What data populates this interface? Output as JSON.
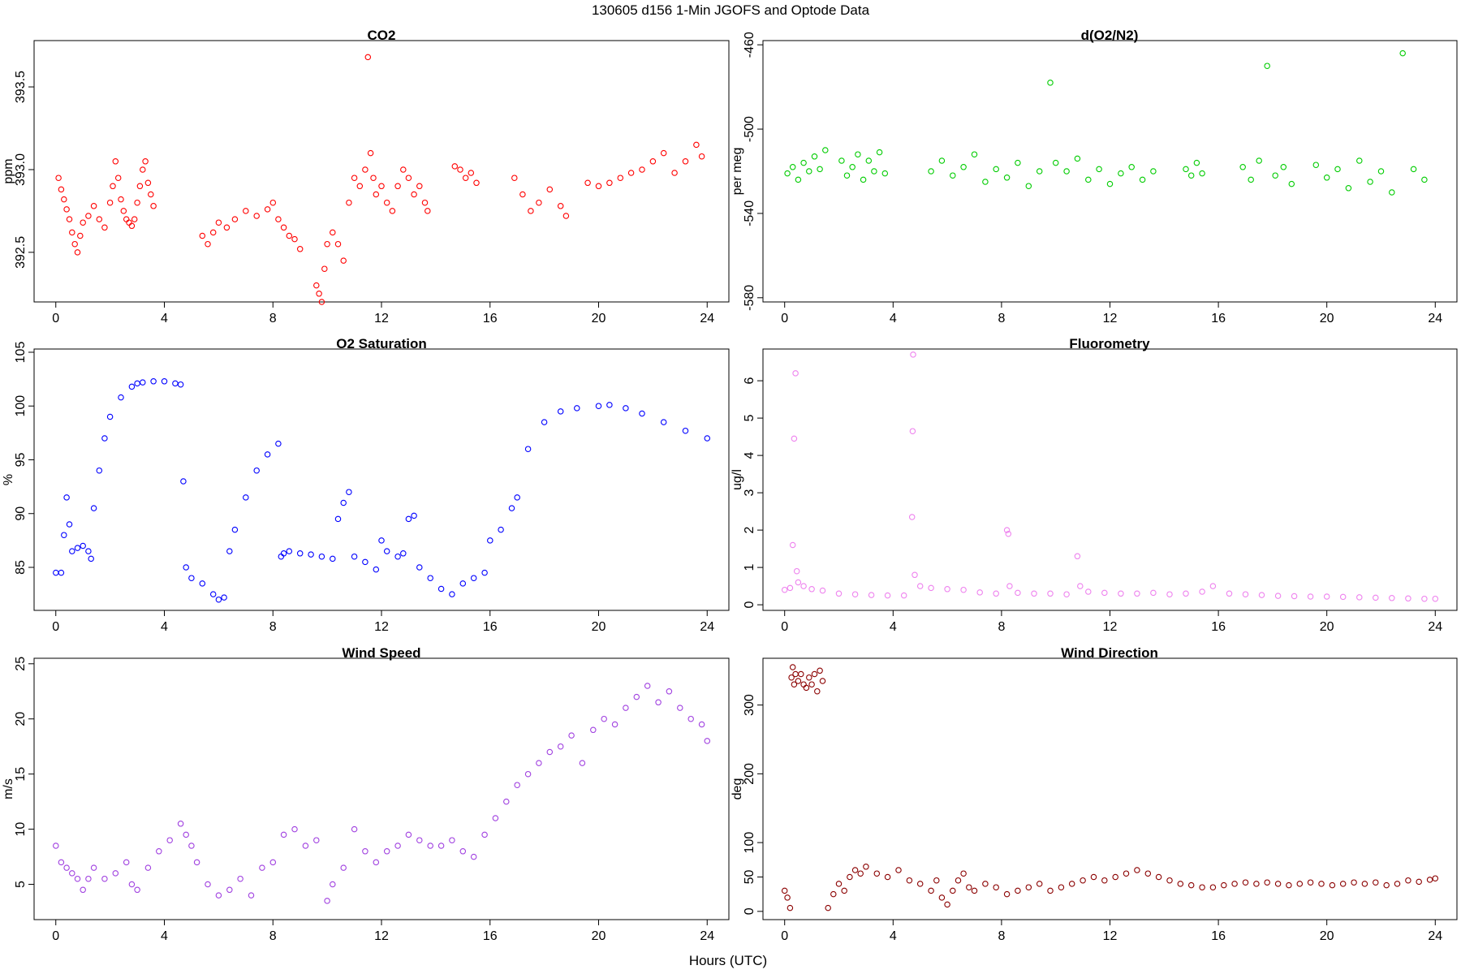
{
  "figure": {
    "title": "130605   d156   1-Min  JGOFS and Optode Data",
    "xlabel": "Hours (UTC)"
  },
  "chart_data": [
    {
      "id": "co2",
      "type": "scatter",
      "title": "CO2",
      "ylabel": "ppm",
      "color": "#ff0000",
      "xlim": [
        -0.8,
        24.8
      ],
      "ylim": [
        392.2,
        393.78
      ],
      "xticks": [
        0,
        4,
        8,
        12,
        16,
        20,
        24
      ],
      "yticks": [
        392.5,
        393.0,
        393.5
      ],
      "ytick_labels": [
        "392.5",
        "393.0",
        "393.5"
      ],
      "series": [
        {
          "name": "CO2",
          "x": [
            0.1,
            0.2,
            0.3,
            0.4,
            0.5,
            0.6,
            0.7,
            0.8,
            0.9,
            1.0,
            1.2,
            1.4,
            1.6,
            1.8,
            2.0,
            2.1,
            2.2,
            2.3,
            2.4,
            2.5,
            2.6,
            2.7,
            2.8,
            2.9,
            3.0,
            3.1,
            3.2,
            3.3,
            3.4,
            3.5,
            3.6,
            5.4,
            5.6,
            5.8,
            6.0,
            6.3,
            6.6,
            7.0,
            7.4,
            7.8,
            8.0,
            8.2,
            8.4,
            8.6,
            8.8,
            9.0,
            9.6,
            9.7,
            9.8,
            9.9,
            10.0,
            10.2,
            10.4,
            10.6,
            10.8,
            11.0,
            11.2,
            11.4,
            11.5,
            11.6,
            11.7,
            11.8,
            12.0,
            12.2,
            12.4,
            12.6,
            12.8,
            13.0,
            13.2,
            13.4,
            13.6,
            13.7,
            14.7,
            14.9,
            15.1,
            15.3,
            15.5,
            16.9,
            17.2,
            17.5,
            17.8,
            18.2,
            18.6,
            18.8,
            19.6,
            20.0,
            20.4,
            20.8,
            21.2,
            21.6,
            22.0,
            22.4,
            22.8,
            23.2,
            23.6,
            23.8
          ],
          "y": [
            392.95,
            392.88,
            392.82,
            392.76,
            392.7,
            392.62,
            392.55,
            392.5,
            392.6,
            392.68,
            392.72,
            392.78,
            392.7,
            392.65,
            392.8,
            392.9,
            393.05,
            392.95,
            392.82,
            392.75,
            392.7,
            392.68,
            392.66,
            392.7,
            392.8,
            392.9,
            393.0,
            393.05,
            392.92,
            392.85,
            392.78,
            392.6,
            392.55,
            392.62,
            392.68,
            392.65,
            392.7,
            392.75,
            392.72,
            392.76,
            392.8,
            392.7,
            392.65,
            392.6,
            392.58,
            392.52,
            392.3,
            392.25,
            392.2,
            392.4,
            392.55,
            392.62,
            392.55,
            392.45,
            392.8,
            392.95,
            392.9,
            393.0,
            393.68,
            393.1,
            392.95,
            392.85,
            392.9,
            392.8,
            392.75,
            392.9,
            393.0,
            392.95,
            392.85,
            392.9,
            392.8,
            392.75,
            393.02,
            393.0,
            392.95,
            392.98,
            392.92,
            392.95,
            392.85,
            392.75,
            392.8,
            392.88,
            392.78,
            392.72,
            392.92,
            392.9,
            392.92,
            392.95,
            392.98,
            393.0,
            393.05,
            393.1,
            392.98,
            393.05,
            393.15,
            393.08
          ]
        }
      ]
    },
    {
      "id": "do2n2",
      "type": "scatter",
      "title": "d(O2/N2)",
      "ylabel": "per meg",
      "color": "#00cc00",
      "xlim": [
        -0.8,
        24.8
      ],
      "ylim": [
        -582,
        -458
      ],
      "xticks": [
        0,
        4,
        8,
        12,
        16,
        20,
        24
      ],
      "yticks": [
        -580,
        -540,
        -500,
        -460
      ],
      "ytick_labels": [
        "-580",
        "-540",
        "-500",
        "-460"
      ],
      "series": [
        {
          "name": "d(O2/N2)",
          "x": [
            0.1,
            0.3,
            0.5,
            0.7,
            0.9,
            1.1,
            1.3,
            1.5,
            2.1,
            2.3,
            2.5,
            2.7,
            2.9,
            3.1,
            3.3,
            3.5,
            3.7,
            5.4,
            5.8,
            6.2,
            6.6,
            7.0,
            7.4,
            7.8,
            8.2,
            8.6,
            9.0,
            9.4,
            9.8,
            10.0,
            10.4,
            10.8,
            11.2,
            11.6,
            12.0,
            12.4,
            12.8,
            13.2,
            13.6,
            14.8,
            15.0,
            15.2,
            15.4,
            16.9,
            17.2,
            17.5,
            17.8,
            18.1,
            18.4,
            18.7,
            19.6,
            20.0,
            20.4,
            20.8,
            21.2,
            21.6,
            22.0,
            22.4,
            22.8,
            23.2,
            23.6
          ],
          "y": [
            -521,
            -518,
            -524,
            -516,
            -520,
            -513,
            -519,
            -510,
            -515,
            -522,
            -518,
            -512,
            -524,
            -515,
            -520,
            -511,
            -521,
            -520,
            -515,
            -522,
            -518,
            -512,
            -525,
            -519,
            -523,
            -516,
            -527,
            -520,
            -478,
            -516,
            -520,
            -514,
            -524,
            -519,
            -526,
            -521,
            -518,
            -524,
            -520,
            -519,
            -522,
            -516,
            -521,
            -518,
            -524,
            -515,
            -470,
            -522,
            -518,
            -526,
            -517,
            -523,
            -519,
            -528,
            -515,
            -525,
            -520,
            -530,
            -464,
            -519,
            -524
          ]
        }
      ]
    },
    {
      "id": "o2sat",
      "type": "scatter",
      "title": "O2 Saturation",
      "ylabel": "%",
      "color": "#0000ff",
      "xlim": [
        -0.8,
        24.8
      ],
      "ylim": [
        81,
        105.3
      ],
      "xticks": [
        0,
        4,
        8,
        12,
        16,
        20,
        24
      ],
      "yticks": [
        85,
        90,
        95,
        100,
        105
      ],
      "ytick_labels": [
        "85",
        "90",
        "95",
        "100",
        "105"
      ],
      "series": [
        {
          "name": "O2 Saturation",
          "x": [
            0.0,
            0.2,
            0.3,
            0.4,
            0.5,
            0.6,
            0.8,
            1.0,
            1.2,
            1.3,
            1.4,
            1.6,
            1.8,
            2.0,
            2.4,
            2.8,
            3.0,
            3.2,
            3.6,
            4.0,
            4.4,
            4.6,
            4.7,
            4.8,
            5.0,
            5.4,
            5.8,
            6.0,
            6.2,
            6.4,
            6.6,
            7.0,
            7.4,
            7.8,
            8.2,
            8.3,
            8.4,
            8.6,
            9.0,
            9.4,
            9.8,
            10.2,
            10.4,
            10.6,
            10.8,
            11.0,
            11.4,
            11.8,
            12.0,
            12.2,
            12.6,
            12.8,
            13.0,
            13.2,
            13.4,
            13.8,
            14.2,
            14.6,
            15.0,
            15.4,
            15.8,
            16.0,
            16.4,
            16.8,
            17.0,
            17.4,
            18.0,
            18.6,
            19.2,
            20.0,
            20.4,
            21.0,
            21.6,
            22.4,
            23.2,
            24.0
          ],
          "y": [
            84.5,
            84.5,
            88.0,
            91.5,
            89.0,
            86.5,
            86.8,
            87.0,
            86.5,
            85.8,
            90.5,
            94.0,
            97.0,
            99.0,
            100.8,
            101.8,
            102.1,
            102.2,
            102.3,
            102.3,
            102.1,
            102.0,
            93.0,
            85.0,
            84.0,
            83.5,
            82.5,
            82.0,
            82.2,
            86.5,
            88.5,
            91.5,
            94.0,
            95.5,
            96.5,
            86.0,
            86.3,
            86.5,
            86.3,
            86.2,
            86.0,
            85.8,
            89.5,
            91.0,
            92.0,
            86.0,
            85.5,
            84.8,
            87.5,
            86.5,
            86.0,
            86.3,
            89.5,
            89.8,
            85.0,
            84.0,
            83.0,
            82.5,
            83.5,
            84.0,
            84.5,
            87.5,
            88.5,
            90.5,
            91.5,
            96.0,
            98.5,
            99.5,
            99.8,
            100.0,
            100.1,
            99.8,
            99.3,
            98.5,
            97.7,
            97.0
          ]
        }
      ]
    },
    {
      "id": "fluor",
      "type": "scatter",
      "title": "Fluorometry",
      "ylabel": "ug/l",
      "color": "#ee82ee",
      "xlim": [
        -0.8,
        24.8
      ],
      "ylim": [
        -0.15,
        6.85
      ],
      "xticks": [
        0,
        4,
        8,
        12,
        16,
        20,
        24
      ],
      "yticks": [
        0,
        1,
        2,
        3,
        4,
        5,
        6
      ],
      "ytick_labels": [
        "0",
        "1",
        "2",
        "3",
        "4",
        "5",
        "6"
      ],
      "series": [
        {
          "name": "Fluorometry",
          "x": [
            0.0,
            0.2,
            0.3,
            0.35,
            0.4,
            0.45,
            0.5,
            0.7,
            1.0,
            1.4,
            2.0,
            2.6,
            3.2,
            3.8,
            4.4,
            4.7,
            4.72,
            4.74,
            4.8,
            5.0,
            5.4,
            6.0,
            6.6,
            7.2,
            7.8,
            8.2,
            8.25,
            8.3,
            8.6,
            9.2,
            9.8,
            10.4,
            10.8,
            10.9,
            11.2,
            11.8,
            12.4,
            13.0,
            13.6,
            14.2,
            14.8,
            15.4,
            15.8,
            16.4,
            17.0,
            17.6,
            18.2,
            18.8,
            19.4,
            20.0,
            20.6,
            21.2,
            21.8,
            22.4,
            23.0,
            23.6,
            24.0
          ],
          "y": [
            0.4,
            0.45,
            1.6,
            4.45,
            6.2,
            0.9,
            0.6,
            0.5,
            0.42,
            0.38,
            0.3,
            0.28,
            0.26,
            0.25,
            0.25,
            2.35,
            4.65,
            6.7,
            0.8,
            0.5,
            0.45,
            0.42,
            0.4,
            0.33,
            0.3,
            2.0,
            1.9,
            0.5,
            0.32,
            0.3,
            0.3,
            0.28,
            1.3,
            0.5,
            0.35,
            0.32,
            0.3,
            0.3,
            0.32,
            0.28,
            0.3,
            0.35,
            0.5,
            0.3,
            0.28,
            0.26,
            0.24,
            0.23,
            0.22,
            0.22,
            0.21,
            0.2,
            0.19,
            0.18,
            0.17,
            0.16,
            0.16
          ]
        }
      ]
    },
    {
      "id": "wspd",
      "type": "scatter",
      "title": "Wind Speed",
      "ylabel": "m/s",
      "color": "#a040e0",
      "xlim": [
        -0.8,
        24.8
      ],
      "ylim": [
        1.8,
        25.5
      ],
      "xticks": [
        0,
        4,
        8,
        12,
        16,
        20,
        24
      ],
      "yticks": [
        5,
        10,
        15,
        20,
        25
      ],
      "ytick_labels": [
        "5",
        "10",
        "15",
        "20",
        "25"
      ],
      "series": [
        {
          "name": "Wind Speed",
          "x": [
            0.0,
            0.2,
            0.4,
            0.6,
            0.8,
            1.0,
            1.2,
            1.4,
            1.8,
            2.2,
            2.6,
            2.8,
            3.0,
            3.4,
            3.8,
            4.2,
            4.6,
            4.8,
            5.0,
            5.2,
            5.6,
            6.0,
            6.4,
            6.8,
            7.2,
            7.6,
            8.0,
            8.4,
            8.8,
            9.2,
            9.6,
            10.0,
            10.2,
            10.6,
            11.0,
            11.4,
            11.8,
            12.2,
            12.6,
            13.0,
            13.4,
            13.8,
            14.2,
            14.6,
            15.0,
            15.4,
            15.8,
            16.2,
            16.6,
            17.0,
            17.4,
            17.8,
            18.2,
            18.6,
            19.0,
            19.4,
            19.8,
            20.2,
            20.6,
            21.0,
            21.4,
            21.8,
            22.2,
            22.6,
            23.0,
            23.4,
            23.8,
            24.0
          ],
          "y": [
            8.5,
            7.0,
            6.5,
            6.0,
            5.5,
            4.5,
            5.5,
            6.5,
            5.5,
            6.0,
            7.0,
            5.0,
            4.5,
            6.5,
            8.0,
            9.0,
            10.5,
            9.5,
            8.5,
            7.0,
            5.0,
            4.0,
            4.5,
            5.5,
            4.0,
            6.5,
            7.0,
            9.5,
            10.0,
            8.5,
            9.0,
            3.5,
            5.0,
            6.5,
            10.0,
            8.0,
            7.0,
            8.0,
            8.5,
            9.5,
            9.0,
            8.5,
            8.5,
            9.0,
            8.0,
            7.5,
            9.5,
            11.0,
            12.5,
            14.0,
            15.0,
            16.0,
            17.0,
            17.5,
            18.5,
            16.0,
            19.0,
            20.0,
            19.5,
            21.0,
            22.0,
            23.0,
            21.5,
            22.5,
            21.0,
            20.0,
            19.5,
            18.0
          ]
        }
      ]
    },
    {
      "id": "wdir",
      "type": "scatter",
      "title": "Wind Direction",
      "ylabel": "deg",
      "color": "#8b0000",
      "xlim": [
        -0.8,
        24.8
      ],
      "ylim": [
        -12,
        368
      ],
      "xticks": [
        0,
        4,
        8,
        12,
        16,
        20,
        24
      ],
      "yticks": [
        0,
        50,
        100,
        200,
        300
      ],
      "ytick_labels": [
        "0",
        "50",
        "100",
        "200",
        "300"
      ],
      "series": [
        {
          "name": "Wind Direction",
          "x": [
            0.0,
            0.1,
            0.2,
            0.25,
            0.3,
            0.35,
            0.4,
            0.5,
            0.6,
            0.7,
            0.8,
            0.9,
            1.0,
            1.1,
            1.2,
            1.3,
            1.4,
            1.6,
            1.8,
            2.0,
            2.2,
            2.4,
            2.6,
            2.8,
            3.0,
            3.4,
            3.8,
            4.2,
            4.6,
            5.0,
            5.4,
            5.6,
            5.8,
            6.0,
            6.2,
            6.4,
            6.6,
            6.8,
            7.0,
            7.4,
            7.8,
            8.2,
            8.6,
            9.0,
            9.4,
            9.8,
            10.2,
            10.6,
            11.0,
            11.4,
            11.8,
            12.2,
            12.6,
            13.0,
            13.4,
            13.8,
            14.2,
            14.6,
            15.0,
            15.4,
            15.8,
            16.2,
            16.6,
            17.0,
            17.4,
            17.8,
            18.2,
            18.6,
            19.0,
            19.4,
            19.8,
            20.2,
            20.6,
            21.0,
            21.4,
            21.8,
            22.2,
            22.6,
            23.0,
            23.4,
            23.8,
            24.0
          ],
          "y": [
            30,
            20,
            5,
            340,
            355,
            330,
            345,
            335,
            345,
            330,
            325,
            340,
            330,
            345,
            320,
            350,
            335,
            5,
            25,
            40,
            30,
            50,
            60,
            55,
            65,
            55,
            50,
            60,
            45,
            40,
            30,
            45,
            20,
            10,
            30,
            45,
            55,
            35,
            30,
            40,
            35,
            25,
            30,
            35,
            40,
            30,
            35,
            40,
            45,
            50,
            45,
            50,
            55,
            60,
            55,
            50,
            45,
            40,
            38,
            35,
            35,
            38,
            40,
            42,
            40,
            42,
            40,
            38,
            40,
            42,
            40,
            38,
            40,
            42,
            40,
            42,
            38,
            40,
            45,
            43,
            46,
            48
          ]
        }
      ]
    }
  ]
}
